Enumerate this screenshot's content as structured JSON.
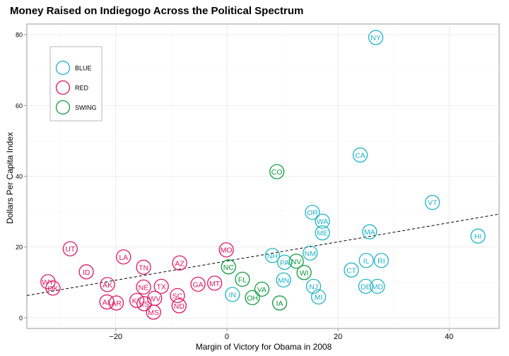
{
  "chart_data": {
    "type": "scatter",
    "title": "Money Raised on Indiegogo Across the Political Spectrum",
    "xlabel": "Margin of Victory for Obama in 2008",
    "ylabel": "Dollars Per Capita Index",
    "xlim": [
      -36,
      49
    ],
    "ylim": [
      -3,
      83
    ],
    "x_ticks": [
      -20,
      0,
      20,
      40
    ],
    "y_ticks": [
      0,
      20,
      40,
      60,
      80
    ],
    "grid": true,
    "legend": {
      "placement": "top-left",
      "entries": [
        {
          "label": "BLUE",
          "color": "#1fb3c6"
        },
        {
          "label": "RED",
          "color": "#e0155f"
        },
        {
          "label": "SWING",
          "color": "#0f9a3f"
        }
      ]
    },
    "trend_line": {
      "style": "dashed",
      "x": [
        -36,
        49
      ],
      "y": [
        6.3,
        29.3
      ]
    },
    "series": [
      {
        "name": "BLUE",
        "color": "#1fb3c6",
        "points": [
          {
            "label": "NY",
            "x": 26.8,
            "y": 79.2
          },
          {
            "label": "CA",
            "x": 24.0,
            "y": 46.0
          },
          {
            "label": "VT",
            "x": 37.0,
            "y": 32.6
          },
          {
            "label": "HI",
            "x": 45.2,
            "y": 23.1
          },
          {
            "label": "OR",
            "x": 15.4,
            "y": 29.8
          },
          {
            "label": "WA",
            "x": 17.2,
            "y": 27.3
          },
          {
            "label": "ME",
            "x": 17.2,
            "y": 24.0
          },
          {
            "label": "MA",
            "x": 25.7,
            "y": 24.3
          },
          {
            "label": "NH",
            "x": 8.2,
            "y": 17.6
          },
          {
            "label": "NM",
            "x": 15.0,
            "y": 18.3
          },
          {
            "label": "PA",
            "x": 10.4,
            "y": 15.7
          },
          {
            "label": "IL",
            "x": 25.1,
            "y": 16.2
          },
          {
            "label": "RI",
            "x": 27.8,
            "y": 16.2
          },
          {
            "label": "CT",
            "x": 22.4,
            "y": 13.5
          },
          {
            "label": "MN",
            "x": 10.2,
            "y": 10.7
          },
          {
            "label": "NJ",
            "x": 15.6,
            "y": 8.9
          },
          {
            "label": "DE",
            "x": 25.0,
            "y": 8.9
          },
          {
            "label": "MD",
            "x": 27.1,
            "y": 8.9
          },
          {
            "label": "MI",
            "x": 16.5,
            "y": 5.9
          },
          {
            "label": "IN",
            "x": 1.0,
            "y": 6.6
          }
        ]
      },
      {
        "name": "RED",
        "color": "#e0155f",
        "points": [
          {
            "label": "UT",
            "x": -28.2,
            "y": 19.5
          },
          {
            "label": "LA",
            "x": -18.6,
            "y": 17.2
          },
          {
            "label": "MO",
            "x": -0.1,
            "y": 19.2
          },
          {
            "label": "AZ",
            "x": -8.5,
            "y": 15.5
          },
          {
            "label": "TN",
            "x": -15.0,
            "y": 14.3
          },
          {
            "label": "ID",
            "x": -25.3,
            "y": 13.0
          },
          {
            "label": "WY",
            "x": -32.2,
            "y": 10.2
          },
          {
            "label": "OK",
            "x": -31.3,
            "y": 8.4
          },
          {
            "label": "AK",
            "x": -21.5,
            "y": 9.4
          },
          {
            "label": "NE",
            "x": -15.0,
            "y": 8.7
          },
          {
            "label": "TX",
            "x": -11.8,
            "y": 8.9
          },
          {
            "label": "GA",
            "x": -5.2,
            "y": 9.5
          },
          {
            "label": "MT",
            "x": -2.2,
            "y": 9.8
          },
          {
            "label": "SC",
            "x": -8.9,
            "y": 6.3
          },
          {
            "label": "WV",
            "x": -13.0,
            "y": 5.5
          },
          {
            "label": "KY",
            "x": -16.2,
            "y": 4.9
          },
          {
            "label": "KS",
            "x": -14.9,
            "y": 4.0
          },
          {
            "label": "AL",
            "x": -21.6,
            "y": 4.5
          },
          {
            "label": "AR",
            "x": -19.9,
            "y": 4.2
          },
          {
            "label": "ND",
            "x": -8.6,
            "y": 3.4
          },
          {
            "label": "MS",
            "x": -13.2,
            "y": 1.6
          }
        ]
      },
      {
        "name": "SWING",
        "color": "#0f9a3f",
        "points": [
          {
            "label": "CO",
            "x": 9.0,
            "y": 41.3
          },
          {
            "label": "NV",
            "x": 12.5,
            "y": 16.0
          },
          {
            "label": "WI",
            "x": 13.9,
            "y": 12.8
          },
          {
            "label": "NC",
            "x": 0.3,
            "y": 14.4
          },
          {
            "label": "FL",
            "x": 2.8,
            "y": 10.9
          },
          {
            "label": "VA",
            "x": 6.3,
            "y": 8.1
          },
          {
            "label": "OH",
            "x": 4.6,
            "y": 5.7
          },
          {
            "label": "IA",
            "x": 9.5,
            "y": 4.2
          }
        ]
      }
    ]
  }
}
